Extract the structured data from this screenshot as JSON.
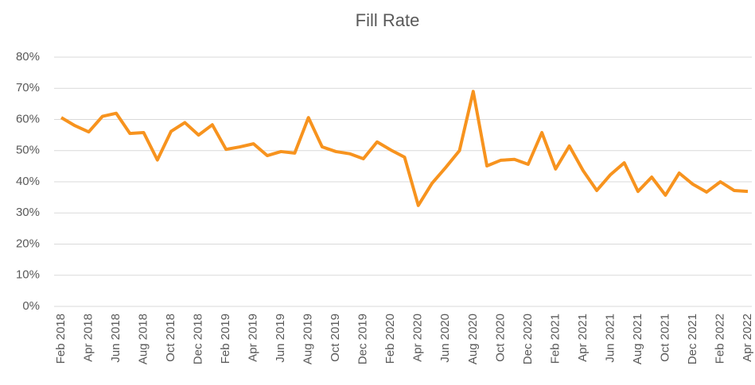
{
  "chart_data": {
    "type": "line",
    "title": "Fill Rate",
    "categories": [
      "Feb 2018",
      null,
      "Apr 2018",
      null,
      "Jun 2018",
      null,
      "Aug 2018",
      null,
      "Oct 2018",
      null,
      "Dec 2018",
      null,
      "Feb 2019",
      null,
      "Apr 2019",
      null,
      "Jun 2019",
      null,
      "Aug 2019",
      null,
      "Oct 2019",
      null,
      "Dec 2019",
      null,
      "Feb 2020",
      null,
      "Apr 2020",
      null,
      "Jun 2020",
      null,
      "Aug 2020",
      null,
      "Oct 2020",
      null,
      "Dec 2020",
      null,
      "Feb 2021",
      null,
      "Apr 2021",
      null,
      "Jun 2021",
      null,
      "Aug 2021",
      null,
      "Oct 2021",
      null,
      "Dec 2021",
      null,
      "Feb 2022",
      null,
      "Apr 2022"
    ],
    "series": [
      {
        "color": "#f7931e",
        "values": [
          60.6,
          58,
          56,
          61,
          62,
          55.5,
          55.8,
          47,
          56.2,
          59,
          55,
          58.3,
          50.4,
          51.2,
          52.2,
          48.4,
          49.7,
          49.2,
          60.6,
          51.2,
          49.7,
          49,
          47.4,
          52.8,
          50.2,
          47.9,
          32.4,
          39.5,
          44.6,
          50,
          69,
          45.1,
          46.9,
          47.2,
          45.6,
          55.8,
          44.1,
          51.5,
          43.6,
          37.2,
          42.3,
          46.1,
          36.9,
          41.5,
          35.7,
          42.8,
          39.2,
          36.7,
          40,
          37.2,
          36.9
        ]
      }
    ],
    "ylim": [
      0,
      80
    ],
    "yticks": [
      {
        "value": 0,
        "label": "0%"
      },
      {
        "value": 10,
        "label": "10%"
      },
      {
        "value": 20,
        "label": "20%"
      },
      {
        "value": 30,
        "label": "30%"
      },
      {
        "value": 40,
        "label": "40%"
      },
      {
        "value": 50,
        "label": "50%"
      },
      {
        "value": 60,
        "label": "60%"
      },
      {
        "value": 70,
        "label": "70%"
      },
      {
        "value": 80,
        "label": "80%"
      }
    ],
    "grid": true
  }
}
